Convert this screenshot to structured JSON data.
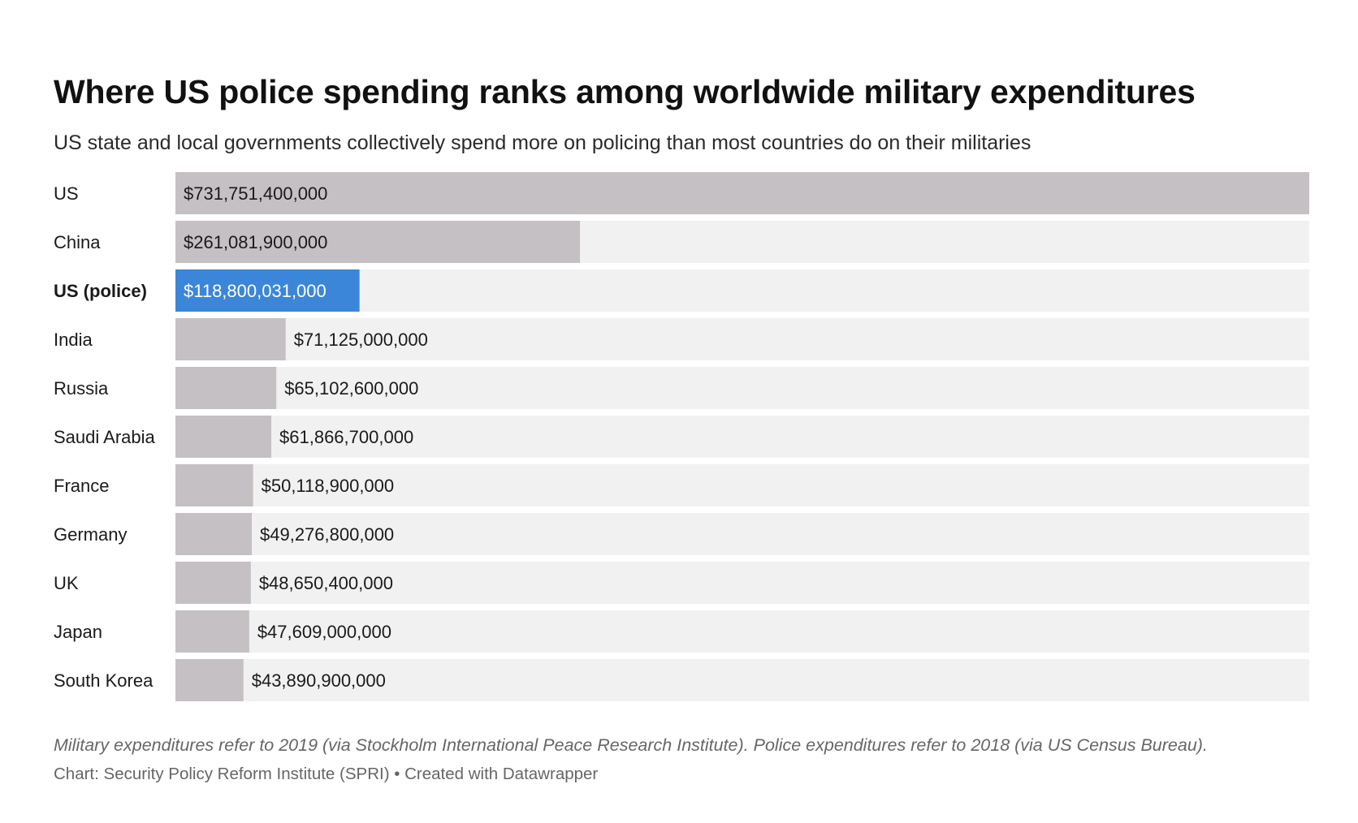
{
  "title": "Where US police spending ranks among worldwide military expenditures",
  "subtitle": "US state and local governments collectively spend more on policing than most countries do on their militaries",
  "note": "Military expenditures refer to 2019 (via Stockholm International Peace Research Institute). Police expenditures refer to 2018 (via US Census Bureau).",
  "source": "Chart: Security Policy Reform Institute (SPRI) • Created with Datawrapper",
  "colors": {
    "bar": "#c5c0c3",
    "highlight": "#3b86d8",
    "track": "#f2f1f1",
    "label_text": "#1a1a1a",
    "highlight_text": "#ffffff"
  },
  "chart_data": {
    "type": "bar",
    "orientation": "horizontal",
    "categories": [
      "US",
      "China",
      "US (police)",
      "India",
      "Russia",
      "Saudi Arabia",
      "France",
      "Germany",
      "UK",
      "Japan",
      "South Korea"
    ],
    "values": [
      731751400000,
      261081900000,
      118800031000,
      71125000000,
      65102600000,
      61866700000,
      50118900000,
      49276800000,
      48650400000,
      47609000000,
      43890900000
    ],
    "value_labels": [
      "$731,751,400,000",
      "$261,081,900,000",
      "$118,800,031,000",
      "$71,125,000,000",
      "$65,102,600,000",
      "$61,866,700,000",
      "$50,118,900,000",
      "$49,276,800,000",
      "$48,650,400,000",
      "$47,609,000,000",
      "$43,890,900,000"
    ],
    "highlight": "US (police)",
    "xlim": [
      0,
      731751400000
    ],
    "grid": false
  }
}
